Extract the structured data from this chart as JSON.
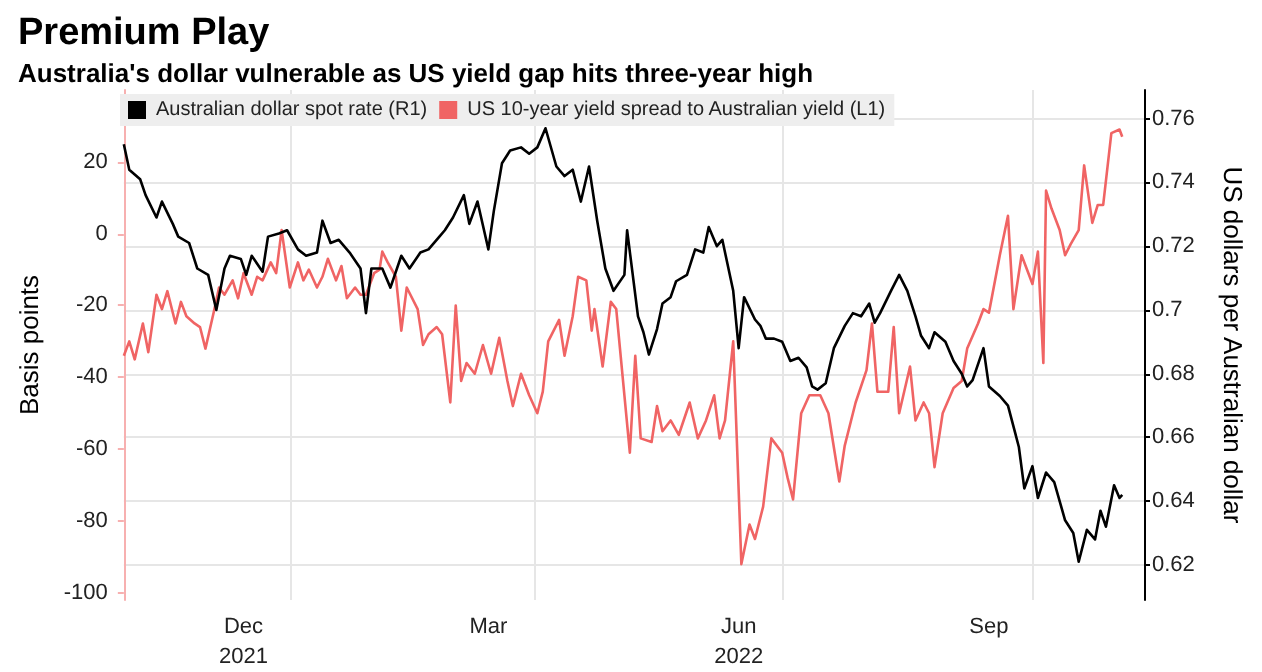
{
  "chart_data": {
    "type": "line",
    "title": "Premium Play",
    "subtitle": "Australia's dollar vulnerable as US yield gap hits three-year high",
    "ylabel": "Basis points",
    "y2label": "US dollars per Australian dollar",
    "xlim": [
      "2021-11-01",
      "2022-11-11"
    ],
    "xticks": [
      {
        "value": "2021-12-15",
        "label": "Dec\n2021"
      },
      {
        "value": "2022-01-01",
        "label": null
      },
      {
        "value": "2022-03-15",
        "label": "Mar"
      },
      {
        "value": "2022-04-01",
        "label": null
      },
      {
        "value": "2022-06-15",
        "label": "Jun\n2022"
      },
      {
        "value": "2022-07-01",
        "label": null
      },
      {
        "value": "2022-09-15",
        "label": "Sep"
      },
      {
        "value": "2022-10-01",
        "label": null
      }
    ],
    "ylim": [
      -102,
      40
    ],
    "yticks": [
      -100,
      -80,
      -60,
      -40,
      -20,
      0,
      20
    ],
    "y2lim": [
      0.609,
      0.769
    ],
    "y2ticks": [
      0.62,
      0.64,
      0.66,
      0.68,
      0.7,
      0.72,
      0.74,
      0.76
    ],
    "grid": true,
    "legend": "top left",
    "marker": "none",
    "line_style": "solid",
    "series": [
      {
        "name": "Australian dollar spot rate (R1)",
        "color": "#000000",
        "axis": "y2",
        "x": [
          "2021-11-01",
          "2021-11-03",
          "2021-11-07",
          "2021-11-09",
          "2021-11-13",
          "2021-11-15",
          "2021-11-19",
          "2021-11-21",
          "2021-11-25",
          "2021-11-28",
          "2021-12-02",
          "2021-12-05",
          "2021-12-08",
          "2021-12-10",
          "2021-12-14",
          "2021-12-16",
          "2021-12-18",
          "2021-12-22",
          "2021-12-24",
          "2021-12-28",
          "2021-12-31",
          "2022-01-04",
          "2022-01-07",
          "2022-01-11",
          "2022-01-13",
          "2022-01-16",
          "2022-01-19",
          "2022-01-23",
          "2022-01-27",
          "2022-01-29",
          "2022-01-31",
          "2022-02-04",
          "2022-02-07",
          "2022-02-11",
          "2022-02-14",
          "2022-02-18",
          "2022-02-21",
          "2022-02-25",
          "2022-02-27",
          "2022-03-02",
          "2022-03-06",
          "2022-03-08",
          "2022-03-11",
          "2022-03-15",
          "2022-03-17",
          "2022-03-20",
          "2022-03-23",
          "2022-03-27",
          "2022-03-30",
          "2022-04-02",
          "2022-04-05",
          "2022-04-09",
          "2022-04-12",
          "2022-04-15",
          "2022-04-18",
          "2022-04-21",
          "2022-04-24",
          "2022-04-27",
          "2022-04-30",
          "2022-05-04",
          "2022-05-05",
          "2022-05-09",
          "2022-05-11",
          "2022-05-13",
          "2022-05-16",
          "2022-05-18",
          "2022-05-21",
          "2022-05-23",
          "2022-05-27",
          "2022-05-30",
          "2022-06-02",
          "2022-06-04",
          "2022-06-07",
          "2022-06-09",
          "2022-06-13",
          "2022-06-15",
          "2022-06-17",
          "2022-06-21",
          "2022-06-23",
          "2022-06-25",
          "2022-06-28",
          "2022-07-01",
          "2022-07-04",
          "2022-07-07",
          "2022-07-10",
          "2022-07-12",
          "2022-07-14",
          "2022-07-17",
          "2022-07-20",
          "2022-07-24",
          "2022-07-27",
          "2022-07-30",
          "2022-08-02",
          "2022-08-04",
          "2022-08-06",
          "2022-08-10",
          "2022-08-13",
          "2022-08-16",
          "2022-08-19",
          "2022-08-21",
          "2022-08-24",
          "2022-08-26",
          "2022-08-30",
          "2022-09-02",
          "2022-09-05",
          "2022-09-07",
          "2022-09-09",
          "2022-09-13",
          "2022-09-15",
          "2022-09-19",
          "2022-09-22",
          "2022-09-26",
          "2022-09-28",
          "2022-10-01",
          "2022-10-03",
          "2022-10-06",
          "2022-10-09",
          "2022-10-13",
          "2022-10-16",
          "2022-10-18",
          "2022-10-21",
          "2022-10-24",
          "2022-10-26",
          "2022-10-28",
          "2022-10-31",
          "2022-11-02",
          "2022-11-03"
        ],
        "values": [
          0.752,
          0.744,
          0.741,
          0.736,
          0.729,
          0.734,
          0.727,
          0.723,
          0.721,
          0.713,
          0.711,
          0.7,
          0.713,
          0.717,
          0.716,
          0.711,
          0.717,
          0.712,
          0.723,
          0.724,
          0.725,
          0.719,
          0.717,
          0.718,
          0.728,
          0.721,
          0.722,
          0.718,
          0.713,
          0.699,
          0.713,
          0.713,
          0.707,
          0.717,
          0.713,
          0.718,
          0.719,
          0.723,
          0.725,
          0.729,
          0.736,
          0.727,
          0.734,
          0.719,
          0.731,
          0.746,
          0.75,
          0.751,
          0.749,
          0.751,
          0.757,
          0.745,
          0.742,
          0.744,
          0.734,
          0.745,
          0.728,
          0.713,
          0.706,
          0.711,
          0.725,
          0.698,
          0.693,
          0.686,
          0.694,
          0.702,
          0.704,
          0.709,
          0.711,
          0.719,
          0.718,
          0.726,
          0.72,
          0.722,
          0.706,
          0.688,
          0.704,
          0.697,
          0.695,
          0.691,
          0.691,
          0.69,
          0.684,
          0.685,
          0.682,
          0.676,
          0.675,
          0.677,
          0.688,
          0.695,
          0.699,
          0.698,
          0.702,
          0.696,
          0.699,
          0.706,
          0.711,
          0.706,
          0.698,
          0.692,
          0.688,
          0.693,
          0.69,
          0.684,
          0.68,
          0.676,
          0.678,
          0.688,
          0.676,
          0.673,
          0.67,
          0.657,
          0.644,
          0.651,
          0.641,
          0.649,
          0.646,
          0.634,
          0.63,
          0.621,
          0.631,
          0.628,
          0.637,
          0.632,
          0.645,
          0.641,
          0.642
        ]
      },
      {
        "name": "US 10-year yield spread to Australian yield (L1)",
        "color": "#f06464",
        "x": [
          "2021-11-01",
          "2021-11-03",
          "2021-11-05",
          "2021-11-08",
          "2021-11-10",
          "2021-11-13",
          "2021-11-15",
          "2021-11-17",
          "2021-11-20",
          "2021-11-22",
          "2021-11-24",
          "2021-11-27",
          "2021-11-29",
          "2021-12-01",
          "2021-12-04",
          "2021-12-06",
          "2021-12-08",
          "2021-12-11",
          "2021-12-13",
          "2021-12-15",
          "2021-12-18",
          "2021-12-20",
          "2021-12-22",
          "2021-12-25",
          "2021-12-27",
          "2021-12-29",
          "2022-01-01",
          "2022-01-04",
          "2022-01-06",
          "2022-01-08",
          "2022-01-11",
          "2022-01-13",
          "2022-01-15",
          "2022-01-18",
          "2022-01-20",
          "2022-01-22",
          "2022-01-25",
          "2022-01-27",
          "2022-01-29",
          "2022-02-01",
          "2022-02-03",
          "2022-02-04",
          "2022-02-06",
          "2022-02-09",
          "2022-02-11",
          "2022-02-13",
          "2022-02-17",
          "2022-02-19",
          "2022-02-21",
          "2022-02-24",
          "2022-02-26",
          "2022-03-01",
          "2022-03-03",
          "2022-03-05",
          "2022-03-07",
          "2022-03-10",
          "2022-03-13",
          "2022-03-16",
          "2022-03-19",
          "2022-03-22",
          "2022-03-24",
          "2022-03-27",
          "2022-03-30",
          "2022-04-02",
          "2022-04-04",
          "2022-04-06",
          "2022-04-10",
          "2022-04-12",
          "2022-04-15",
          "2022-04-17",
          "2022-04-20",
          "2022-04-22",
          "2022-04-23",
          "2022-04-26",
          "2022-04-29",
          "2022-05-01",
          "2022-05-06",
          "2022-05-08",
          "2022-05-10",
          "2022-05-14",
          "2022-05-16",
          "2022-05-18",
          "2022-05-21",
          "2022-05-24",
          "2022-05-28",
          "2022-05-31",
          "2022-06-03",
          "2022-06-06",
          "2022-06-08",
          "2022-06-10",
          "2022-06-13",
          "2022-06-16",
          "2022-06-19",
          "2022-06-21",
          "2022-06-24",
          "2022-06-27",
          "2022-07-01",
          "2022-07-03",
          "2022-07-05",
          "2022-07-08",
          "2022-07-11",
          "2022-07-15",
          "2022-07-18",
          "2022-07-22",
          "2022-07-24",
          "2022-07-28",
          "2022-08-01",
          "2022-08-03",
          "2022-08-05",
          "2022-08-09",
          "2022-08-11",
          "2022-08-13",
          "2022-08-17",
          "2022-08-19",
          "2022-08-22",
          "2022-08-24",
          "2022-08-26",
          "2022-08-29",
          "2022-09-02",
          "2022-09-05",
          "2022-09-07",
          "2022-09-11",
          "2022-09-13",
          "2022-09-15",
          "2022-09-19",
          "2022-09-22",
          "2022-09-24",
          "2022-09-27",
          "2022-10-01",
          "2022-10-03",
          "2022-10-05",
          "2022-10-06",
          "2022-10-08",
          "2022-10-11",
          "2022-10-13",
          "2022-10-15",
          "2022-10-18",
          "2022-10-20",
          "2022-10-23",
          "2022-10-25",
          "2022-10-27",
          "2022-10-30",
          "2022-11-02",
          "2022-11-03"
        ],
        "values": [
          -34,
          -30,
          -35,
          -25,
          -33,
          -17,
          -21,
          -16,
          -25,
          -19,
          -23,
          -25,
          -26,
          -32,
          -22,
          -15,
          -17,
          -13,
          -18,
          -11,
          -17,
          -12,
          -13,
          -8,
          -11,
          1,
          -15,
          -8,
          -13,
          -10,
          -15,
          -12,
          -7,
          -13,
          -9,
          -18,
          -15,
          -17,
          -17,
          -11,
          -10,
          -5,
          -8,
          -12,
          -27,
          -15,
          -21,
          -31,
          -28,
          -26,
          -28,
          -47,
          -20,
          -41,
          -36,
          -39,
          -31,
          -39,
          -29,
          -41,
          -48,
          -39,
          -45,
          -50,
          -44,
          -30,
          -24,
          -34,
          -23,
          -12,
          -13,
          -27,
          -21,
          -37,
          -19,
          -21,
          -61,
          -34,
          -57,
          -58,
          -48,
          -55,
          -52,
          -56,
          -47,
          -57,
          -52,
          -45,
          -57,
          -52,
          -30,
          -92,
          -81,
          -85,
          -76,
          -57,
          -61,
          -68,
          -74,
          -50,
          -45,
          -45,
          -50,
          -69,
          -59,
          -47,
          -38,
          -25,
          -44,
          -44,
          -26,
          -50,
          -37,
          -52,
          -47,
          -50,
          -65,
          -50,
          -43,
          -41,
          -32,
          -25,
          -21,
          -22,
          -6,
          5,
          -21,
          -6,
          -14,
          -5,
          -36,
          12,
          7,
          1,
          -6,
          -3,
          1,
          19,
          3,
          8,
          8,
          28,
          29,
          27
        ]
      }
    ]
  }
}
